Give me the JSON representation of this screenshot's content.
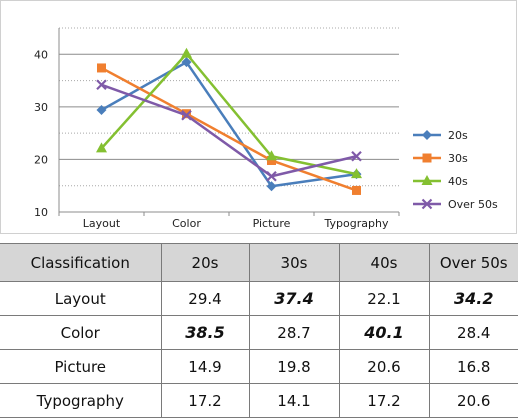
{
  "chart_data": {
    "type": "line",
    "title": "",
    "xlabel": "",
    "ylabel": "",
    "categories": [
      "Layout",
      "Color",
      "Picture",
      "Typography"
    ],
    "ylim": [
      10,
      45
    ],
    "yticks": [
      10,
      20,
      30,
      40
    ],
    "grid": "horizontal",
    "legend_position": "right",
    "series": [
      {
        "name": "20s",
        "values": [
          29.4,
          38.5,
          14.9,
          17.2
        ],
        "color": "#4a7ebb",
        "marker": "diamond"
      },
      {
        "name": "30s",
        "values": [
          37.4,
          28.7,
          19.8,
          14.1
        ],
        "color": "#f07f2f",
        "marker": "square"
      },
      {
        "name": "40s",
        "values": [
          22.1,
          40.1,
          20.6,
          17.2
        ],
        "color": "#84c031",
        "marker": "triangle"
      },
      {
        "name": "Over 50s",
        "values": [
          34.2,
          28.4,
          16.8,
          20.6
        ],
        "color": "#7f5aa8",
        "marker": "x"
      }
    ]
  },
  "table": {
    "headers": [
      "Classification",
      "20s",
      "30s",
      "40s",
      "Over 50s"
    ],
    "rows": [
      {
        "label": "Layout",
        "cells": [
          {
            "v": "29.4",
            "hl": false
          },
          {
            "v": "37.4",
            "hl": true
          },
          {
            "v": "22.1",
            "hl": false
          },
          {
            "v": "34.2",
            "hl": true
          }
        ]
      },
      {
        "label": "Color",
        "cells": [
          {
            "v": "38.5",
            "hl": true
          },
          {
            "v": "28.7",
            "hl": false
          },
          {
            "v": "40.1",
            "hl": true
          },
          {
            "v": "28.4",
            "hl": false
          }
        ]
      },
      {
        "label": "Picture",
        "cells": [
          {
            "v": "14.9",
            "hl": false
          },
          {
            "v": "19.8",
            "hl": false
          },
          {
            "v": "20.6",
            "hl": false
          },
          {
            "v": "16.8",
            "hl": false
          }
        ]
      },
      {
        "label": "Typography",
        "cells": [
          {
            "v": "17.2",
            "hl": false
          },
          {
            "v": "14.1",
            "hl": false
          },
          {
            "v": "17.2",
            "hl": false
          },
          {
            "v": "20.6",
            "hl": false
          }
        ]
      }
    ]
  }
}
